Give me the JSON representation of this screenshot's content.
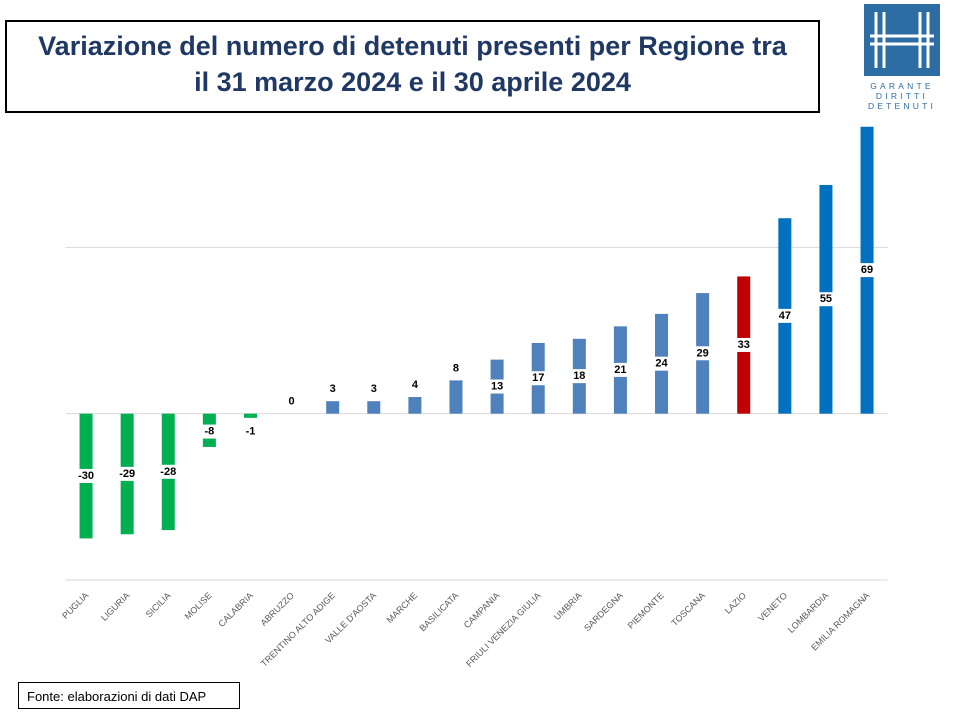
{
  "logo": [
    "GARANTE",
    "DIRITTI",
    "DETENUTI"
  ],
  "chart_data": {
    "type": "bar",
    "title_lines": [
      "Variazione del numero di detenuti presenti per Regione tra",
      "il 31 marzo 2024 e il 30 aprile 2024"
    ],
    "source": "Fonte: elaborazioni di dati DAP",
    "categories": [
      "PUGLIA",
      "LIGURIA",
      "SICILIA",
      "MOLISE",
      "CALABRIA",
      "ABRUZZO",
      "TRENTINO ALTO ADIGE",
      "VALLE D'AOSTA",
      "MARCHE",
      "BASILICATA",
      "CAMPANIA",
      "FRIULI VENEZIA GIULIA",
      "UMBRIA",
      "SARDEGNA",
      "PIEMONTE",
      "TOSCANA",
      "LAZIO",
      "VENETO",
      "LOMBARDIA",
      "EMILIA ROMAGNA"
    ],
    "values": [
      -30,
      -29,
      -28,
      -8,
      -1,
      0,
      3,
      3,
      4,
      8,
      13,
      17,
      18,
      21,
      24,
      29,
      33,
      47,
      55,
      69
    ],
    "colors": [
      "#00b050",
      "#00b050",
      "#00b050",
      "#00b050",
      "#00b050",
      "#4f81bd",
      "#4f81bd",
      "#4f81bd",
      "#4f81bd",
      "#4f81bd",
      "#4f81bd",
      "#4f81bd",
      "#4f81bd",
      "#4f81bd",
      "#4f81bd",
      "#4f81bd",
      "#c00000",
      "#0070c0",
      "#0070c0",
      "#0070c0"
    ],
    "ylim": [
      -40,
      80
    ],
    "yticks": [
      -40,
      0,
      40
    ],
    "grid": true
  }
}
